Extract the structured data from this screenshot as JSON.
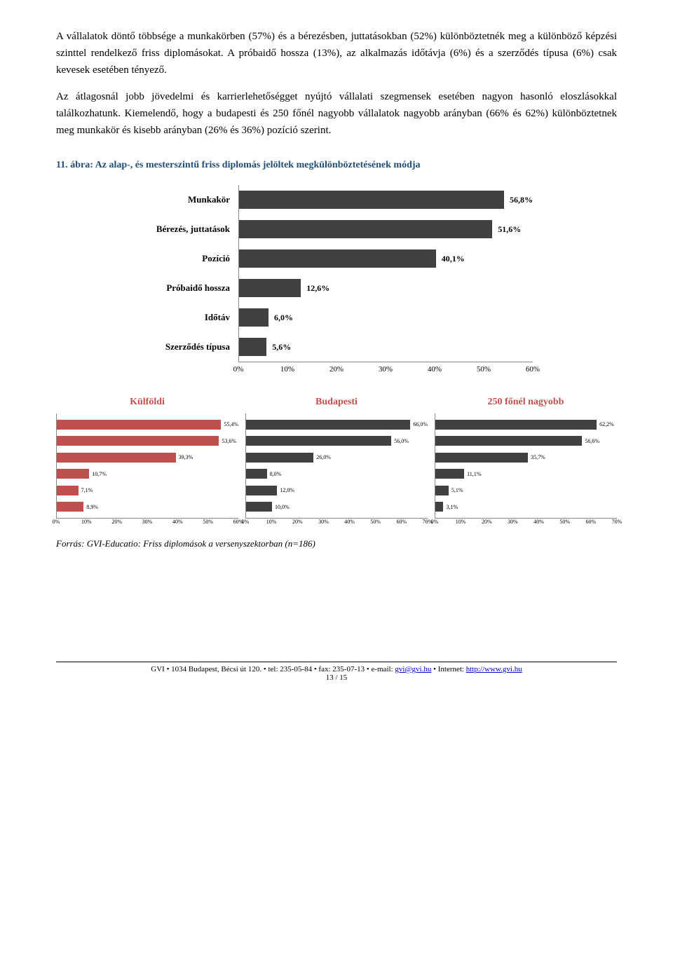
{
  "paragraphs": {
    "p1": "A vállalatok döntő többsége a munkakörben (57%) és a bérezésben, juttatásokban (52%) különböztetnék meg a különböző képzési szinttel rendelkező friss diplomásokat. A próbaidő hossza (13%), az alkalmazás időtávja (6%) és a szerződés típusa (6%) csak kevesek esetében tényező.",
    "p2": "Az átlagosnál jobb jövedelmi és karrierlehetőségget nyújtó vállalati szegmensek esetében nagyon hasonló eloszlásokkal találkozhatunk. Kiemelendő, hogy a budapesti és 250 főnél nagyobb vállalatok nagyobb arányban (66% és 62%) különböztetnek meg munkakör és kisebb arányban (26% és 36%) pozíció szerint."
  },
  "main_chart": {
    "title": "11. ábra: Az alap-, és mesterszintű friss diplomás jelöltek megkülönböztetésének módja",
    "title_color": "#1f4e79",
    "bar_color": "#404040",
    "xmax": 60,
    "categories": [
      "Munkakör",
      "Bérezés, juttatások",
      "Pozíció",
      "Próbaidő hossza",
      "Időtáv",
      "Szerződés típusa"
    ],
    "values": [
      56.8,
      51.6,
      40.1,
      12.6,
      6.0,
      5.6
    ],
    "value_labels": [
      "56,8%",
      "51,6%",
      "40,1%",
      "12,6%",
      "6,0%",
      "5,6%"
    ],
    "ticks": [
      "0%",
      "10%",
      "20%",
      "30%",
      "40%",
      "50%",
      "60%"
    ]
  },
  "sub_charts": [
    {
      "title": "Külföldi",
      "title_color": "#c0504d",
      "bar_color": "#c0504d",
      "xmax": 60,
      "values": [
        55.4,
        53.6,
        39.3,
        10.7,
        7.1,
        8.9
      ],
      "value_labels": [
        "55,4%",
        "53,6%",
        "39,3%",
        "10,7%",
        "7,1%",
        "8,9%"
      ],
      "ticks": [
        "0%",
        "10%",
        "20%",
        "30%",
        "40%",
        "50%",
        "60%"
      ]
    },
    {
      "title": "Budapesti",
      "title_color": "#c0504d",
      "bar_color": "#404040",
      "xmax": 70,
      "values": [
        66.0,
        56.0,
        26.0,
        8.0,
        12.0,
        10.0
      ],
      "value_labels": [
        "66,0%",
        "56,0%",
        "26,0%",
        "8,0%",
        "12,0%",
        "10,0%"
      ],
      "ticks": [
        "0%",
        "10%",
        "20%",
        "30%",
        "40%",
        "50%",
        "60%",
        "70%"
      ]
    },
    {
      "title": "250 főnél nagyobb",
      "title_color": "#c0504d",
      "bar_color": "#404040",
      "xmax": 70,
      "values": [
        62.2,
        56.6,
        35.7,
        11.1,
        5.1,
        3.1
      ],
      "value_labels": [
        "62,2%",
        "56,6%",
        "35,7%",
        "11,1%",
        "5,1%",
        "3,1%"
      ],
      "ticks": [
        "0%",
        "10%",
        "20%",
        "30%",
        "40%",
        "50%",
        "60%",
        "70%"
      ]
    }
  ],
  "source": "Forrás: GVI-Educatio: Friss diplomások a versenyszektorban (n=186)",
  "footer": {
    "text_before": "GVI • 1034 Budapest, Bécsi út 120. • tel: 235-05-84 • fax: 235-07-13 • e-mail: ",
    "email": "gvi@gvi.hu",
    "text_mid": " • Internet: ",
    "url": "http://www.gvi.hu",
    "page": "13 / 15"
  }
}
